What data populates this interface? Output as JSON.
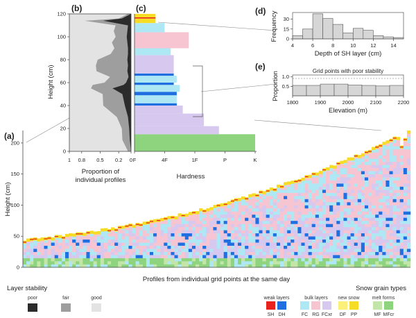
{
  "panels": {
    "a": "(a)",
    "b": "(b)",
    "c": "(c)",
    "d": "(d)",
    "e": "(e)"
  },
  "panel_a": {
    "ylabel": "Height (cm)",
    "xlabel": "Profiles from individual grid points at the same day",
    "yticks": [
      "0",
      "50",
      "100",
      "150",
      "200"
    ],
    "ylim": [
      0,
      220
    ]
  },
  "panel_b": {
    "ylabel": "Height (cm)",
    "xlabel_line1": "Proportion of",
    "xlabel_line2": "individual profiles",
    "yticks": [
      "0",
      "20",
      "40",
      "60",
      "80",
      "100",
      "120"
    ],
    "xticks": [
      "1",
      "0.8",
      "0.5",
      "0.2",
      "0"
    ]
  },
  "panel_c": {
    "xlabel": "Hardness",
    "xticks": [
      "F",
      "4F",
      "1F",
      "P",
      "K"
    ]
  },
  "panel_d": {
    "ylabel": "Frequency",
    "xlabel": "Depth of SH layer (cm)",
    "xticks": [
      "4",
      "6",
      "8",
      "10",
      "12",
      "14"
    ],
    "yticks": [
      "0",
      "15",
      "30"
    ]
  },
  "panel_e": {
    "title": "Grid points with poor stability",
    "ylabel": "Proportion",
    "xlabel": "Elevation (m)",
    "xticks": [
      "1800",
      "1900",
      "2000",
      "2100",
      "2200"
    ],
    "yticks": [
      "0.5",
      "1.0"
    ]
  },
  "legend_stability": {
    "title": "Layer stability",
    "items": [
      {
        "label": "poor",
        "color": "#2b2b2b"
      },
      {
        "label": "fair",
        "color": "#9e9e9e"
      },
      {
        "label": "good",
        "color": "#e3e3e3"
      }
    ]
  },
  "legend_grains": {
    "title": "Snow grain types",
    "groups": [
      {
        "label": "weak layers",
        "items": [
          {
            "code": "SH",
            "color": "#e8231e"
          },
          {
            "code": "DH",
            "color": "#1f6fe0"
          }
        ]
      },
      {
        "label": "bulk layers",
        "items": [
          {
            "code": "FC",
            "color": "#aee8f5"
          },
          {
            "code": "RG",
            "color": "#f7c4d2"
          },
          {
            "code": "FCxr",
            "color": "#d6c8ee"
          }
        ]
      },
      {
        "label": "new snow",
        "items": [
          {
            "code": "DF",
            "color": "#fbf07a"
          },
          {
            "code": "PP",
            "color": "#f6dc25"
          }
        ]
      },
      {
        "label": "melt forms",
        "items": [
          {
            "code": "MF",
            "color": "#c3e6a8"
          },
          {
            "code": "MFcr",
            "color": "#8ed47e"
          }
        ]
      }
    ]
  },
  "chart_data": [
    {
      "type": "bar",
      "panel": "d",
      "xlabel": "Depth of SH layer (cm)",
      "ylabel": "Frequency",
      "bins": [
        [
          4,
          5
        ],
        [
          5,
          6
        ],
        [
          6,
          7
        ],
        [
          7,
          8
        ],
        [
          8,
          9
        ],
        [
          9,
          10
        ],
        [
          10,
          11
        ],
        [
          11,
          12
        ],
        [
          12,
          13
        ],
        [
          13,
          14
        ],
        [
          14,
          15
        ]
      ],
      "values": [
        5,
        15,
        38,
        31,
        22,
        9,
        16,
        13,
        5,
        3,
        2
      ],
      "xlim": [
        4,
        15
      ],
      "ylim": [
        0,
        40
      ]
    },
    {
      "type": "bar",
      "panel": "e",
      "title": "Grid points with poor stability",
      "xlabel": "Elevation (m)",
      "ylabel": "Proportion",
      "bins": [
        [
          1800,
          1850
        ],
        [
          1850,
          1900
        ],
        [
          1900,
          1950
        ],
        [
          1950,
          2000
        ],
        [
          2000,
          2050
        ],
        [
          2050,
          2100
        ],
        [
          2100,
          2150
        ],
        [
          2150,
          2200
        ]
      ],
      "values": [
        0.55,
        0.55,
        0.62,
        0.62,
        0.57,
        0.55,
        0.52,
        0.55
      ],
      "xlim": [
        1800,
        2200
      ],
      "ylim": [
        0,
        1.1
      ]
    },
    {
      "type": "area",
      "panel": "b",
      "ylabel": "Height (cm)",
      "y": [
        0,
        10,
        20,
        30,
        40,
        50,
        55,
        58,
        60,
        65,
        70,
        75,
        80,
        85,
        90,
        95,
        100,
        105,
        110,
        114,
        116,
        120
      ],
      "poor_fraction": [
        0,
        0.02,
        0.03,
        0.05,
        0.1,
        0.14,
        0.3,
        0.12,
        0.08,
        0.04,
        0.06,
        0.05,
        0.06,
        0.05,
        0.05,
        0.06,
        0.07,
        0.06,
        0.05,
        0.45,
        0.15,
        0
      ],
      "fair_fraction": [
        0.05,
        0.12,
        0.12,
        0.18,
        0.35,
        0.32,
        0.35,
        0.5,
        0.35,
        0.3,
        0.5,
        0.52,
        0.48,
        0.28,
        0.22,
        0.25,
        0.18,
        0.22,
        0.2,
        0.3,
        0.05,
        0.05
      ]
    },
    {
      "type": "bar",
      "panel": "c",
      "xlabel": "Hardness",
      "layers": [
        {
          "bottom": 0,
          "top": 15,
          "grain": "MFcr",
          "hardness": 4.0
        },
        {
          "bottom": 15,
          "top": 22,
          "grain": "FCxr",
          "hardness": 2.8
        },
        {
          "bottom": 22,
          "top": 33,
          "grain": "FCxr",
          "hardness": 2.3
        },
        {
          "bottom": 33,
          "top": 40,
          "grain": "FCxr",
          "hardness": 1.6
        },
        {
          "bottom": 40,
          "top": 42,
          "grain": "DH",
          "hardness": 1.4
        },
        {
          "bottom": 42,
          "top": 49,
          "grain": "FC",
          "hardness": 1.4
        },
        {
          "bottom": 49,
          "top": 52,
          "grain": "DH",
          "hardness": 1.4
        },
        {
          "bottom": 52,
          "top": 58,
          "grain": "FC",
          "hardness": 1.5
        },
        {
          "bottom": 58,
          "top": 60,
          "grain": "DH",
          "hardness": 1.3
        },
        {
          "bottom": 60,
          "top": 66,
          "grain": "FC",
          "hardness": 1.4
        },
        {
          "bottom": 66,
          "top": 68,
          "grain": "DH",
          "hardness": 1.3
        },
        {
          "bottom": 68,
          "top": 84,
          "grain": "FCxr",
          "hardness": 1.3
        },
        {
          "bottom": 84,
          "top": 90,
          "grain": "FC",
          "hardness": 1.2
        },
        {
          "bottom": 90,
          "top": 104,
          "grain": "RG",
          "hardness": 1.8
        },
        {
          "bottom": 104,
          "top": 112,
          "grain": "FC",
          "hardness": 1.0
        },
        {
          "bottom": 112,
          "top": 116,
          "grain": "PP",
          "hardness": 0.7
        },
        {
          "bottom": 116,
          "top": 117,
          "grain": "SH",
          "hardness": 0.7
        },
        {
          "bottom": 117,
          "top": 120,
          "grain": "PP",
          "hardness": 0.7
        }
      ]
    },
    {
      "type": "heatmap",
      "panel": "a",
      "ylabel": "Height (cm)",
      "xlabel": "Profiles from individual grid points at the same day",
      "ylim": [
        0,
        220
      ],
      "profile_count": 110,
      "snow_depth_range": [
        40,
        215
      ]
    }
  ]
}
